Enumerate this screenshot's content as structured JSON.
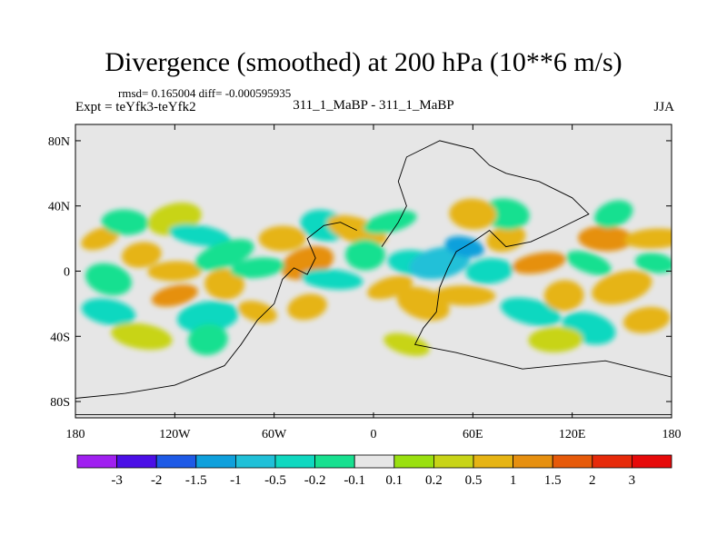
{
  "chart_data": {
    "type": "heatmap",
    "title": "Divergence (smoothed) at 200 hPa (10**6 m/s)",
    "subtitle_left_top": "rmsd= 0.165004 diff= -0.000595935",
    "subtitle_left": "Expt = teYfk3-teYfk2",
    "subtitle_center": "311_1_MaBP - 311_1_MaBP",
    "subtitle_right": "JJA",
    "x_ticks": [
      "180",
      "120W",
      "60W",
      "0",
      "60E",
      "120E",
      "180"
    ],
    "x_tick_values": [
      -180,
      -120,
      -60,
      0,
      60,
      120,
      180
    ],
    "y_ticks": [
      "80N",
      "40N",
      "0",
      "40S",
      "80S"
    ],
    "y_tick_values": [
      80,
      40,
      0,
      -40,
      -80
    ],
    "xlim": [
      -180,
      180
    ],
    "ylim": [
      -90,
      90
    ],
    "colorbar_labels": [
      "-3",
      "-2",
      "-1.5",
      "-1",
      "-0.5",
      "-0.2",
      "-0.1",
      "0.1",
      "0.2",
      "0.5",
      "1",
      "1.5",
      "2",
      "3"
    ],
    "colorbar_colors": [
      "#a020f0",
      "#4b0fe6",
      "#1e5ae6",
      "#0fa0dc",
      "#20c0d8",
      "#10d8c0",
      "#18e090",
      "#e6e6e6",
      "#9ae010",
      "#c8d418",
      "#e6b414",
      "#e69010",
      "#e65a0a",
      "#e62a0a",
      "#e60a0a"
    ],
    "background_color": "#e6e6e6",
    "blobs": [
      {
        "lon": -165,
        "lat": 20,
        "value": 0.5
      },
      {
        "lon": -150,
        "lat": 30,
        "value": -0.2
      },
      {
        "lon": -120,
        "lat": 32,
        "value": 0.2
      },
      {
        "lon": -105,
        "lat": 22,
        "value": -0.5
      },
      {
        "lon": -140,
        "lat": 10,
        "value": 0.5
      },
      {
        "lon": -160,
        "lat": -5,
        "value": -0.2
      },
      {
        "lon": -120,
        "lat": 0,
        "value": 0.5
      },
      {
        "lon": -90,
        "lat": 10,
        "value": -0.2
      },
      {
        "lon": -90,
        "lat": -8,
        "value": 0.5
      },
      {
        "lon": -120,
        "lat": -15,
        "value": 1
      },
      {
        "lon": -160,
        "lat": -25,
        "value": -0.5
      },
      {
        "lon": -100,
        "lat": -28,
        "value": -0.5
      },
      {
        "lon": -70,
        "lat": -25,
        "value": 0.5
      },
      {
        "lon": -55,
        "lat": 20,
        "value": 0.5
      },
      {
        "lon": -40,
        "lat": 5,
        "value": 1
      },
      {
        "lon": -25,
        "lat": -5,
        "value": -0.5
      },
      {
        "lon": -40,
        "lat": -22,
        "value": 0.5
      },
      {
        "lon": -30,
        "lat": 28,
        "value": -0.5
      },
      {
        "lon": -70,
        "lat": 2,
        "value": -0.2
      },
      {
        "lon": -10,
        "lat": 25,
        "value": 0.5
      },
      {
        "lon": -5,
        "lat": 10,
        "value": -0.2
      },
      {
        "lon": 10,
        "lat": -10,
        "value": 0.5
      },
      {
        "lon": 25,
        "lat": 5,
        "value": -0.5
      },
      {
        "lon": 40,
        "lat": 5,
        "value": -1
      },
      {
        "lon": 55,
        "lat": 15,
        "value": -1.5
      },
      {
        "lon": 70,
        "lat": 0,
        "value": -0.5
      },
      {
        "lon": 30,
        "lat": -20,
        "value": 0.5
      },
      {
        "lon": 55,
        "lat": -15,
        "value": 0.5
      },
      {
        "lon": 80,
        "lat": 20,
        "value": 0.5
      },
      {
        "lon": 80,
        "lat": 35,
        "value": -0.2
      },
      {
        "lon": 100,
        "lat": 5,
        "value": 1
      },
      {
        "lon": 95,
        "lat": -25,
        "value": -0.5
      },
      {
        "lon": 115,
        "lat": -15,
        "value": 0.5
      },
      {
        "lon": 130,
        "lat": 5,
        "value": -0.2
      },
      {
        "lon": 140,
        "lat": 20,
        "value": 1
      },
      {
        "lon": 150,
        "lat": -10,
        "value": 0.5
      },
      {
        "lon": 170,
        "lat": 5,
        "value": -0.2
      },
      {
        "lon": 165,
        "lat": -30,
        "value": 0.5
      },
      {
        "lon": 130,
        "lat": -35,
        "value": -0.5
      },
      {
        "lon": 170,
        "lat": 20,
        "value": 0.5
      },
      {
        "lon": 145,
        "lat": 35,
        "value": -0.2
      },
      {
        "lon": 60,
        "lat": 35,
        "value": 0.5
      },
      {
        "lon": 10,
        "lat": 30,
        "value": -0.2
      },
      {
        "lon": -140,
        "lat": -40,
        "value": 0.2
      },
      {
        "lon": -100,
        "lat": -42,
        "value": -0.2
      },
      {
        "lon": 20,
        "lat": -45,
        "value": 0.2
      },
      {
        "lon": 110,
        "lat": -42,
        "value": 0.2
      }
    ],
    "coastlines": [
      [
        [
          -180,
          -78
        ],
        [
          -150,
          -75
        ],
        [
          -120,
          -70
        ],
        [
          -90,
          -58
        ],
        [
          -80,
          -45
        ],
        [
          -70,
          -30
        ],
        [
          -60,
          -20
        ],
        [
          -55,
          -5
        ],
        [
          -48,
          2
        ],
        [
          -40,
          -2
        ],
        [
          -35,
          8
        ],
        [
          -40,
          20
        ],
        [
          -30,
          28
        ],
        [
          -20,
          30
        ],
        [
          -10,
          25
        ]
      ],
      [
        [
          5,
          15
        ],
        [
          15,
          30
        ],
        [
          20,
          40
        ],
        [
          15,
          55
        ],
        [
          20,
          70
        ],
        [
          40,
          80
        ],
        [
          60,
          75
        ],
        [
          70,
          65
        ],
        [
          80,
          60
        ],
        [
          100,
          55
        ],
        [
          120,
          45
        ],
        [
          130,
          35
        ],
        [
          110,
          25
        ],
        [
          95,
          18
        ],
        [
          80,
          15
        ],
        [
          70,
          25
        ],
        [
          60,
          18
        ],
        [
          50,
          12
        ],
        [
          45,
          2
        ],
        [
          40,
          -10
        ],
        [
          38,
          -25
        ],
        [
          30,
          -35
        ],
        [
          25,
          -45
        ],
        [
          50,
          -50
        ],
        [
          70,
          -55
        ],
        [
          90,
          -60
        ],
        [
          110,
          -58
        ],
        [
          140,
          -55
        ],
        [
          160,
          -60
        ],
        [
          180,
          -65
        ]
      ],
      [
        [
          -180,
          -88
        ],
        [
          180,
          -88
        ]
      ]
    ]
  }
}
